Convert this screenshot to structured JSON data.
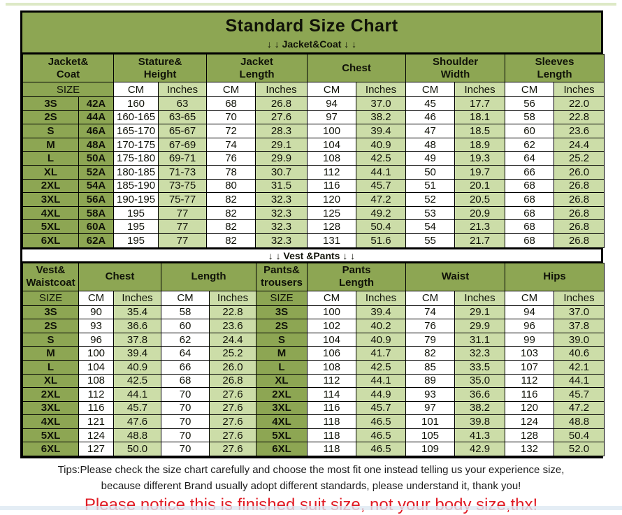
{
  "title": "Standard Size Chart",
  "colors": {
    "olive": "#8da653",
    "light_green": "#ccdda8",
    "red": "#e01b24",
    "border": "#000000"
  },
  "jacket_table": {
    "section_line": "↓ ↓  Jacket&Coat ↓ ↓",
    "group_headers": [
      "Jacket&\nCoat",
      "Stature&\nHeight",
      "Jacket\nLength",
      "Chest",
      "Shoulder\nWidth",
      "Sleeves\nLength"
    ],
    "unit_row": [
      "SIZE",
      "CM",
      "Inches",
      "CM",
      "Inches",
      "CM",
      "Inches",
      "CM",
      "Inches",
      "CM",
      "Inches"
    ],
    "rows": [
      [
        "3S",
        "42A",
        "160",
        "63",
        "68",
        "26.8",
        "94",
        "37.0",
        "45",
        "17.7",
        "56",
        "22.0"
      ],
      [
        "2S",
        "44A",
        "160-165",
        "63-65",
        "70",
        "27.6",
        "97",
        "38.2",
        "46",
        "18.1",
        "58",
        "22.8"
      ],
      [
        "S",
        "46A",
        "165-170",
        "65-67",
        "72",
        "28.3",
        "100",
        "39.4",
        "47",
        "18.5",
        "60",
        "23.6"
      ],
      [
        "M",
        "48A",
        "170-175",
        "67-69",
        "74",
        "29.1",
        "104",
        "40.9",
        "48",
        "18.9",
        "62",
        "24.4"
      ],
      [
        "L",
        "50A",
        "175-180",
        "69-71",
        "76",
        "29.9",
        "108",
        "42.5",
        "49",
        "19.3",
        "64",
        "25.2"
      ],
      [
        "XL",
        "52A",
        "180-185",
        "71-73",
        "78",
        "30.7",
        "112",
        "44.1",
        "50",
        "19.7",
        "66",
        "26.0"
      ],
      [
        "2XL",
        "54A",
        "185-190",
        "73-75",
        "80",
        "31.5",
        "116",
        "45.7",
        "51",
        "20.1",
        "68",
        "26.8"
      ],
      [
        "3XL",
        "56A",
        "190-195",
        "75-77",
        "82",
        "32.3",
        "120",
        "47.2",
        "52",
        "20.5",
        "68",
        "26.8"
      ],
      [
        "4XL",
        "58A",
        "195",
        "77",
        "82",
        "32.3",
        "125",
        "49.2",
        "53",
        "20.9",
        "68",
        "26.8"
      ],
      [
        "5XL",
        "60A",
        "195",
        "77",
        "82",
        "32.3",
        "128",
        "50.4",
        "54",
        "21.3",
        "68",
        "26.8"
      ],
      [
        "6XL",
        "62A",
        "195",
        "77",
        "82",
        "32.3",
        "131",
        "51.6",
        "55",
        "21.7",
        "68",
        "26.8"
      ]
    ]
  },
  "vest_pants_table": {
    "section_line": "↓ ↓  Vest &Pants ↓ ↓",
    "group_headers": [
      "Vest&\nWaistcoat",
      "Chest",
      "Length",
      "Pants&\ntrousers",
      "Pants\nLength",
      "Waist",
      "Hips"
    ],
    "unit_row": [
      "SIZE",
      "CM",
      "Inches",
      "CM",
      "Inches",
      "SIZE",
      "CM",
      "Inches",
      "CM",
      "Inches",
      "CM",
      "Inches"
    ],
    "rows": [
      [
        "3S",
        "90",
        "35.4",
        "58",
        "22.8",
        "3S",
        "100",
        "39.4",
        "74",
        "29.1",
        "94",
        "37.0"
      ],
      [
        "2S",
        "93",
        "36.6",
        "60",
        "23.6",
        "2S",
        "102",
        "40.2",
        "76",
        "29.9",
        "96",
        "37.8"
      ],
      [
        "S",
        "96",
        "37.8",
        "62",
        "24.4",
        "S",
        "104",
        "40.9",
        "79",
        "31.1",
        "99",
        "39.0"
      ],
      [
        "M",
        "100",
        "39.4",
        "64",
        "25.2",
        "M",
        "106",
        "41.7",
        "82",
        "32.3",
        "103",
        "40.6"
      ],
      [
        "L",
        "104",
        "40.9",
        "66",
        "26.0",
        "L",
        "108",
        "42.5",
        "85",
        "33.5",
        "107",
        "42.1"
      ],
      [
        "XL",
        "108",
        "42.5",
        "68",
        "26.8",
        "XL",
        "112",
        "44.1",
        "89",
        "35.0",
        "112",
        "44.1"
      ],
      [
        "2XL",
        "112",
        "44.1",
        "70",
        "27.6",
        "2XL",
        "114",
        "44.9",
        "93",
        "36.6",
        "116",
        "45.7"
      ],
      [
        "3XL",
        "116",
        "45.7",
        "70",
        "27.6",
        "3XL",
        "116",
        "45.7",
        "97",
        "38.2",
        "120",
        "47.2"
      ],
      [
        "4XL",
        "121",
        "47.6",
        "70",
        "27.6",
        "4XL",
        "118",
        "46.5",
        "101",
        "39.8",
        "124",
        "48.8"
      ],
      [
        "5XL",
        "124",
        "48.8",
        "70",
        "27.6",
        "5XL",
        "118",
        "46.5",
        "105",
        "41.3",
        "128",
        "50.4"
      ],
      [
        "6XL",
        "127",
        "50.0",
        "70",
        "27.6",
        "6XL",
        "118",
        "46.5",
        "109",
        "42.9",
        "132",
        "52.0"
      ]
    ]
  },
  "footer": {
    "tips_line1": "Tips:Please check the size chart carefully and choose the most fit one instead telling us your experience size,",
    "tips_line2": "because different Brand usually adopt different standards, please understand it, thank you!",
    "notice": "Please notice this is finished suit size, not your body size,thx!"
  }
}
